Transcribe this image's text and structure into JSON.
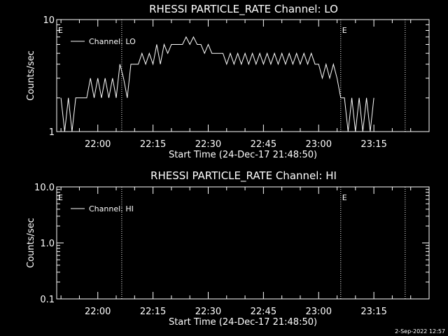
{
  "footer": {
    "date_stamp": "2-Sep-2022 12:57"
  },
  "chart_data": [
    {
      "type": "line",
      "title": "RHESSI PARTICLE_RATE Channel: LO",
      "xlabel": "Start Time (24-Dec-17 21:48:50)",
      "ylabel": "Counts/sec",
      "yscale": "log",
      "ylim": [
        1,
        10
      ],
      "y_ticks": [
        "1",
        "10"
      ],
      "x_ticks": [
        "22:00",
        "22:15",
        "22:30",
        "22:45",
        "23:00",
        "23:15"
      ],
      "legend": {
        "entries": [
          "Channel: LO"
        ],
        "position": "top-left"
      },
      "markers": [
        {
          "label": "E",
          "time": "21:48:50"
        },
        {
          "label": "E",
          "time": "23:06:00"
        }
      ],
      "vertical_dotted_lines": [
        "22:06:30",
        "23:06:00",
        "23:23:30"
      ],
      "series": [
        {
          "name": "Channel: LO",
          "x": [
            "21:50:00",
            "21:51:00",
            "21:52:00",
            "21:53:00",
            "21:54:00",
            "21:55:00",
            "21:56:00",
            "21:57:00",
            "21:58:00",
            "21:59:00",
            "22:00:00",
            "22:01:00",
            "22:02:00",
            "22:03:00",
            "22:04:00",
            "22:05:00",
            "22:06:00",
            "22:07:00",
            "22:08:00",
            "22:09:00",
            "22:10:00",
            "22:11:00",
            "22:12:00",
            "22:13:00",
            "22:14:00",
            "22:15:00",
            "22:16:00",
            "22:17:00",
            "22:18:00",
            "22:19:00",
            "22:20:00",
            "22:21:00",
            "22:22:00",
            "22:23:00",
            "22:24:00",
            "22:25:00",
            "22:26:00",
            "22:27:00",
            "22:28:00",
            "22:29:00",
            "22:30:00",
            "22:31:00",
            "22:32:00",
            "22:33:00",
            "22:34:00",
            "22:35:00",
            "22:36:00",
            "22:37:00",
            "22:38:00",
            "22:39:00",
            "22:40:00",
            "22:41:00",
            "22:42:00",
            "22:43:00",
            "22:44:00",
            "22:45:00",
            "22:46:00",
            "22:47:00",
            "22:48:00",
            "22:49:00",
            "22:50:00",
            "22:51:00",
            "22:52:00",
            "22:53:00",
            "22:54:00",
            "22:55:00",
            "22:56:00",
            "22:57:00",
            "22:58:00",
            "22:59:00",
            "23:00:00",
            "23:01:00",
            "23:02:00",
            "23:03:00",
            "23:04:00",
            "23:05:00",
            "23:06:00",
            "23:07:00",
            "23:08:00",
            "23:09:00",
            "23:10:00",
            "23:11:00",
            "23:12:00",
            "23:13:00",
            "23:14:00",
            "23:15:00"
          ],
          "values": [
            2,
            1,
            2,
            1,
            2,
            2,
            2,
            2,
            3,
            2,
            3,
            2,
            3,
            2,
            3,
            2,
            4,
            3,
            2,
            4,
            4,
            4,
            5,
            4,
            5,
            4,
            6,
            4,
            6,
            5,
            6,
            6,
            6,
            6,
            7,
            6,
            7,
            6,
            6,
            5,
            6,
            5,
            5,
            5,
            5,
            4,
            5,
            4,
            5,
            4,
            5,
            4,
            5,
            4,
            5,
            4,
            5,
            4,
            5,
            4,
            5,
            4,
            5,
            4,
            5,
            4,
            5,
            4,
            5,
            4,
            4,
            3,
            4,
            3,
            4,
            3,
            2,
            2,
            1,
            2,
            1,
            2,
            1,
            2,
            1,
            2
          ]
        }
      ]
    },
    {
      "type": "line",
      "title": "RHESSI PARTICLE_RATE Channel: HI",
      "xlabel": "Start Time (24-Dec-17 21:48:50)",
      "ylabel": "Counts/sec",
      "yscale": "log",
      "ylim": [
        0.1,
        10.0
      ],
      "y_ticks": [
        "0.1",
        "1.0",
        "10.0"
      ],
      "x_ticks": [
        "22:00",
        "22:15",
        "22:30",
        "22:45",
        "23:00",
        "23:15"
      ],
      "legend": {
        "entries": [
          "Channel: HI"
        ],
        "position": "top-left"
      },
      "markers": [
        {
          "label": "E",
          "time": "21:48:50"
        },
        {
          "label": "E",
          "time": "23:06:00"
        }
      ],
      "vertical_dotted_lines": [
        "22:06:30",
        "23:06:00",
        "23:23:30"
      ],
      "series": [
        {
          "name": "Channel: HI",
          "x": [],
          "values": []
        }
      ]
    }
  ]
}
